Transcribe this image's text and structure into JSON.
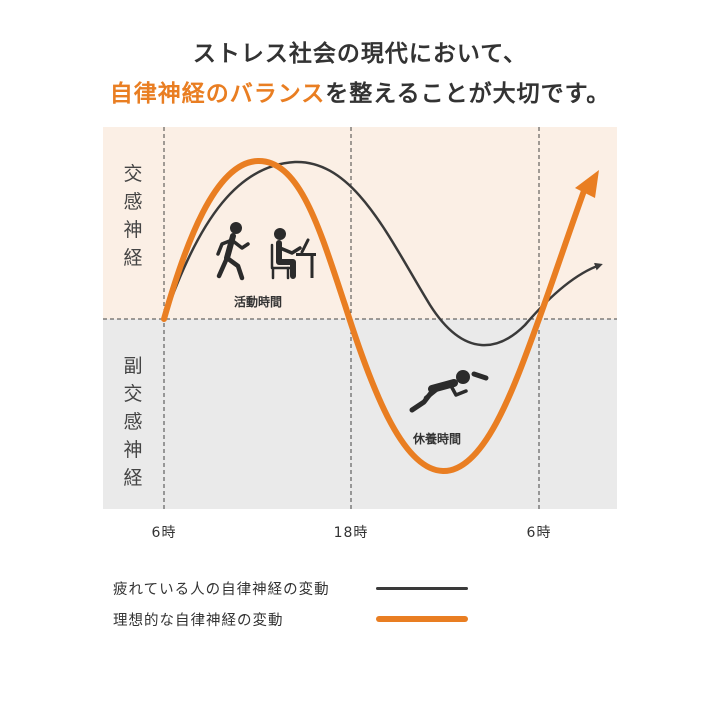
{
  "heading": {
    "line1": "ストレス社会の現代において、",
    "line2_accent": "自律神経のバランス",
    "line2_rest": "を整えることが大切です。"
  },
  "zones": {
    "sympathetic_label": "交感神経",
    "parasympathetic_label": "副交感神経",
    "sympathetic_bg": "#FBEFE5",
    "parasympathetic_bg": "#EAEAEA"
  },
  "periods": {
    "activity": {
      "label": "活動時間",
      "icons": [
        "running-person-icon",
        "desk-worker-icon"
      ]
    },
    "rest": {
      "label": "休養時間",
      "icons": [
        "lying-person-icon"
      ]
    }
  },
  "time_axis": [
    "6時",
    "18時",
    "6時"
  ],
  "legend": [
    {
      "label": "疲れている人の自律神経の変動",
      "color": "#3A3A3A"
    },
    {
      "label": "理想的な自律神経の変動",
      "color": "#E97E22"
    }
  ],
  "colors": {
    "accent": "#E97E22",
    "dark": "#3A3A3A"
  }
}
